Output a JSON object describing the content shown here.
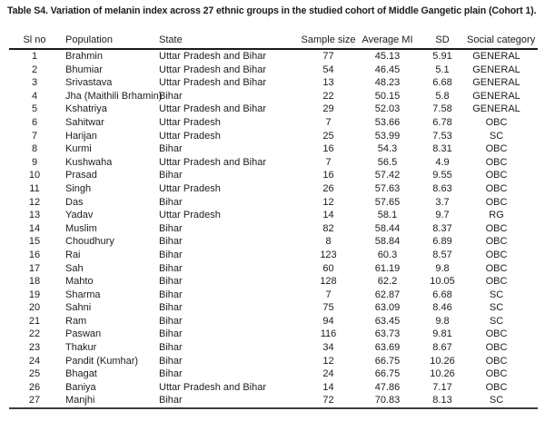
{
  "title": "Table S4. Variation of melanin index across 27 ethnic groups in the studied cohort of Middle Gangetic plain (Cohort 1).",
  "colors": {
    "background": "#ffffff",
    "text": "#1c1c1c",
    "header_rule": "#1a1a1a",
    "bottom_rule": "#3d3d3d"
  },
  "table": {
    "columns": [
      "Sl no",
      "Population",
      "State",
      "Sample size",
      "Average MI",
      "SD",
      "Social category"
    ],
    "rows": [
      [
        "1",
        "Brahmin",
        "Uttar Pradesh and Bihar",
        "77",
        "45.13",
        "5.91",
        "GENERAL"
      ],
      [
        "2",
        "Bhumiar",
        "Uttar Pradesh and Bihar",
        "54",
        "46.45",
        "5.1",
        "GENERAL"
      ],
      [
        "3",
        "Srivastava",
        "Uttar Pradesh and Bihar",
        "13",
        "48.23",
        "6.68",
        "GENERAL"
      ],
      [
        "4",
        "Jha (Maithili Brhamin)",
        "Bihar",
        "22",
        "50.15",
        "5.8",
        "GENERAL"
      ],
      [
        "5",
        "Kshatriya",
        "Uttar Pradesh and Bihar",
        "29",
        "52.03",
        "7.58",
        "GENERAL"
      ],
      [
        "6",
        "Sahitwar",
        "Uttar Pradesh",
        "7",
        "53.66",
        "6.78",
        "OBC"
      ],
      [
        "7",
        "Harijan",
        "Uttar Pradesh",
        "25",
        "53.99",
        "7.53",
        "SC"
      ],
      [
        "8",
        "Kurmi",
        "Bihar",
        "16",
        "54.3",
        "8.31",
        "OBC"
      ],
      [
        "9",
        "Kushwaha",
        "Uttar Pradesh and Bihar",
        "7",
        "56.5",
        "4.9",
        "OBC"
      ],
      [
        "10",
        "Prasad",
        "Bihar",
        "16",
        "57.42",
        "9.55",
        "OBC"
      ],
      [
        "11",
        "Singh",
        "Uttar Pradesh",
        "26",
        "57.63",
        "8.63",
        "OBC"
      ],
      [
        "12",
        "Das",
        "Bihar",
        "12",
        "57.65",
        "3.7",
        "OBC"
      ],
      [
        "13",
        "Yadav",
        "Uttar Pradesh",
        "14",
        "58.1",
        "9.7",
        "RG"
      ],
      [
        "14",
        "Muslim",
        "Bihar",
        "82",
        "58.44",
        "8.37",
        "OBC"
      ],
      [
        "15",
        "Choudhury",
        "Bihar",
        "8",
        "58.84",
        "6.89",
        "OBC"
      ],
      [
        "16",
        "Rai",
        "Bihar",
        "123",
        "60.3",
        "8.57",
        "OBC"
      ],
      [
        "17",
        "Sah",
        "Bihar",
        "60",
        "61.19",
        "9.8",
        "OBC"
      ],
      [
        "18",
        "Mahto",
        "Bihar",
        "128",
        "62.2",
        "10.05",
        "OBC"
      ],
      [
        "19",
        "Sharma",
        "Bihar",
        "7",
        "62.87",
        "6.68",
        "SC"
      ],
      [
        "20",
        "Sahni",
        "Bihar",
        "75",
        "63.09",
        "8.46",
        "SC"
      ],
      [
        "21",
        "Ram",
        "Bihar",
        "94",
        "63.45",
        "9.8",
        "SC"
      ],
      [
        "22",
        "Paswan",
        "Bihar",
        "116",
        "63.73",
        "9.81",
        "OBC"
      ],
      [
        "23",
        "Thakur",
        "Bihar",
        "34",
        "63.69",
        "8.67",
        "OBC"
      ],
      [
        "24",
        "Pandit (Kumhar)",
        "Bihar",
        "12",
        "66.75",
        "10.26",
        "OBC"
      ],
      [
        "25",
        "Bhagat",
        "Bihar",
        "24",
        "66.75",
        "10.26",
        "OBC"
      ],
      [
        "26",
        "Baniya",
        "Uttar Pradesh and Bihar",
        "14",
        "47.86",
        "7.17",
        "OBC"
      ],
      [
        "27",
        "Manjhi",
        "Bihar",
        "72",
        "70.83",
        "8.13",
        "SC"
      ]
    ]
  }
}
